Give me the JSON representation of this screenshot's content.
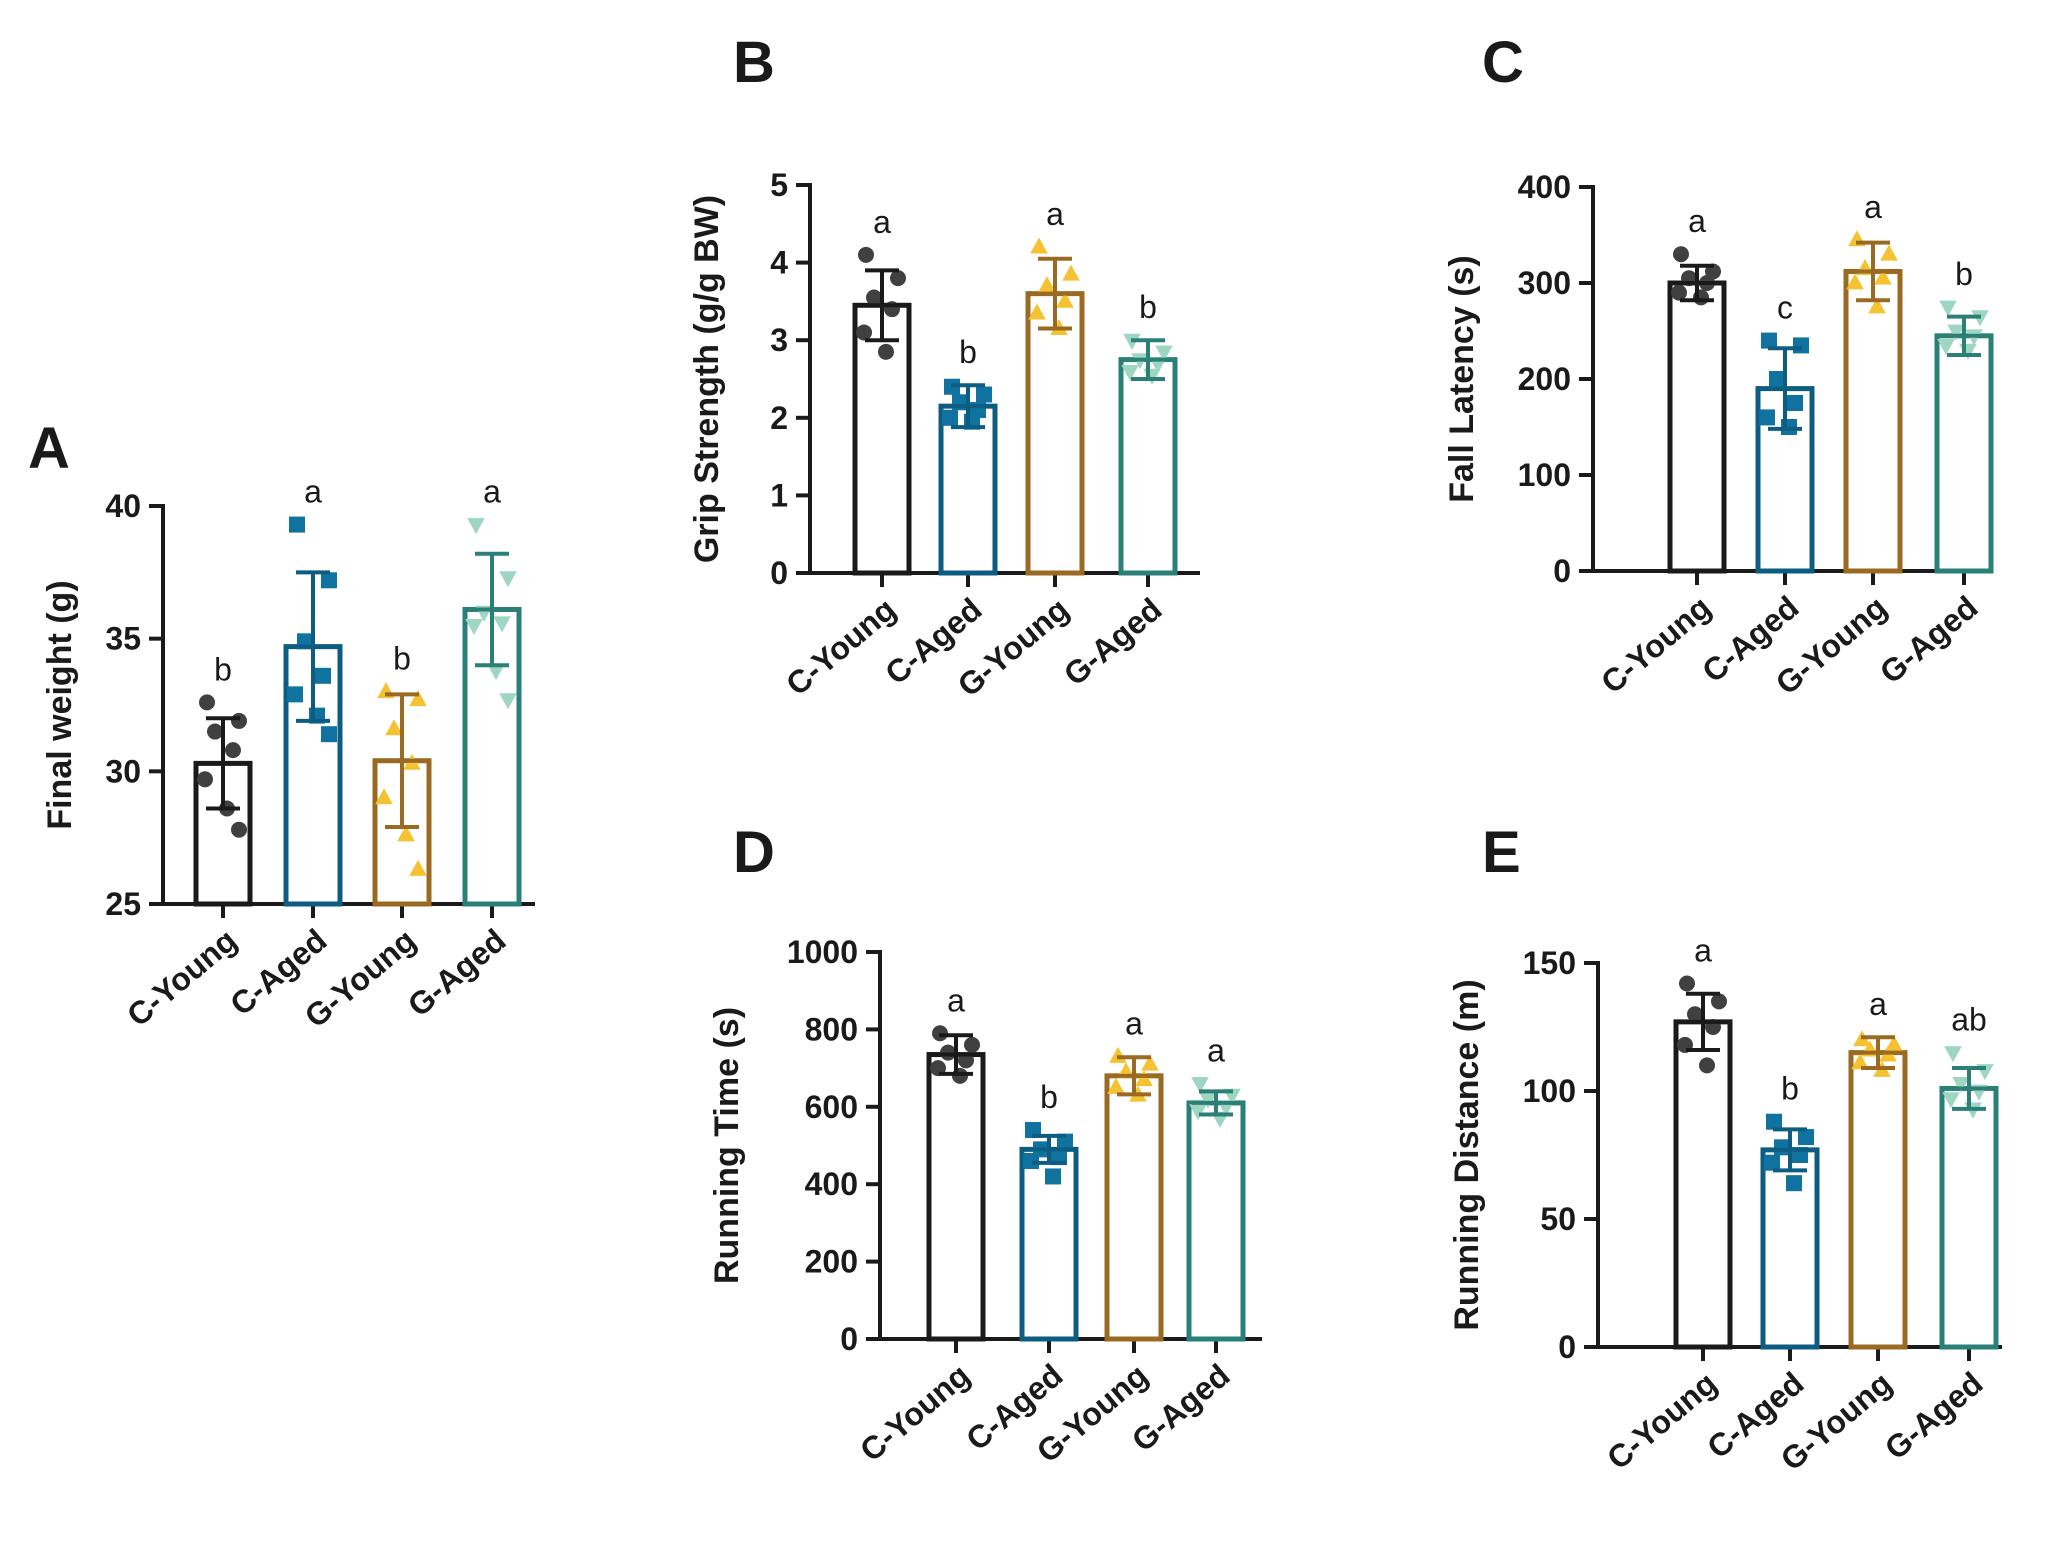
{
  "chart_data": [
    {
      "type": "bar",
      "panel": "A",
      "title": "",
      "ylabel": "Final weight (g)",
      "xlabel": "",
      "ylim": [
        25,
        40
      ],
      "yticks": [
        25,
        30,
        35,
        40
      ],
      "categories": [
        "C-Young",
        "C-Aged",
        "G-Young",
        "G-Aged"
      ],
      "colors": [
        "#1a1a1a",
        "#0d5d82",
        "#9a6a22",
        "#2a8076"
      ],
      "point_colors": [
        "#404040",
        "#10729e",
        "#f5c232",
        "#9ed6c2"
      ],
      "markers": [
        "circle",
        "square",
        "triangle-up",
        "triangle-down"
      ],
      "values": [
        30.3,
        34.7,
        30.4,
        36.1
      ],
      "errors": [
        1.7,
        2.8,
        2.5,
        2.1
      ],
      "sig_letters": [
        "b",
        "a",
        "b",
        "a"
      ],
      "points": [
        [
          32.6,
          31.9,
          31.5,
          30.8,
          29.7,
          28.6,
          27.8
        ],
        [
          39.3,
          37.2,
          34.9,
          33.6,
          32.9,
          32.1,
          31.4
        ],
        [
          33.0,
          32.7,
          31.6,
          30.3,
          29.0,
          27.6,
          26.3
        ],
        [
          39.3,
          37.3,
          36.0,
          35.6,
          35.5,
          33.8,
          32.7
        ]
      ]
    },
    {
      "type": "bar",
      "panel": "B",
      "title": "",
      "ylabel": "Grip Strength (g/g BW)",
      "xlabel": "",
      "ylim": [
        0,
        5
      ],
      "yticks": [
        0,
        1,
        2,
        3,
        4,
        5
      ],
      "categories": [
        "C-Young",
        "C-Aged",
        "G-Young",
        "G-Aged"
      ],
      "colors": [
        "#1a1a1a",
        "#0d5d82",
        "#9a6a22",
        "#2a8076"
      ],
      "point_colors": [
        "#404040",
        "#10729e",
        "#f5c232",
        "#9ed6c2"
      ],
      "markers": [
        "circle",
        "square",
        "triangle-up",
        "triangle-down"
      ],
      "values": [
        3.45,
        2.15,
        3.6,
        2.75
      ],
      "errors": [
        0.45,
        0.27,
        0.45,
        0.25
      ],
      "sig_letters": [
        "a",
        "b",
        "a",
        "b"
      ],
      "points": [
        [
          4.1,
          3.8,
          3.55,
          3.4,
          3.1,
          2.85
        ],
        [
          2.4,
          2.3,
          2.2,
          2.1,
          2.0,
          1.95
        ],
        [
          4.2,
          3.85,
          3.7,
          3.5,
          3.35,
          3.15
        ],
        [
          3.0,
          2.85,
          2.75,
          2.7,
          2.6,
          2.55
        ]
      ]
    },
    {
      "type": "bar",
      "panel": "C",
      "title": "",
      "ylabel": "Fall Latency (s)",
      "xlabel": "",
      "ylim": [
        0,
        400
      ],
      "yticks": [
        0,
        100,
        200,
        300,
        400
      ],
      "categories": [
        "C-Young",
        "C-Aged",
        "G-Young",
        "G-Aged"
      ],
      "colors": [
        "#1a1a1a",
        "#0d5d82",
        "#9a6a22",
        "#2a8076"
      ],
      "point_colors": [
        "#404040",
        "#10729e",
        "#f5c232",
        "#9ed6c2"
      ],
      "markers": [
        "circle",
        "square",
        "triangle-up",
        "triangle-down"
      ],
      "values": [
        300,
        190,
        312,
        245
      ],
      "errors": [
        18,
        42,
        30,
        20
      ],
      "sig_letters": [
        "a",
        "c",
        "a",
        "b"
      ],
      "points": [
        [
          330,
          312,
          305,
          300,
          290,
          285
        ],
        [
          240,
          235,
          200,
          175,
          160,
          150
        ],
        [
          345,
          330,
          315,
          305,
          300,
          275
        ],
        [
          275,
          265,
          250,
          245,
          235,
          230
        ]
      ]
    },
    {
      "type": "bar",
      "panel": "D",
      "title": "",
      "ylabel": "Running Time (s)",
      "xlabel": "",
      "ylim": [
        0,
        1000
      ],
      "yticks": [
        0,
        200,
        400,
        600,
        800,
        1000
      ],
      "categories": [
        "C-Young",
        "C-Aged",
        "G-Young",
        "G-Aged"
      ],
      "colors": [
        "#1a1a1a",
        "#0d5d82",
        "#9a6a22",
        "#2a8076"
      ],
      "point_colors": [
        "#404040",
        "#10729e",
        "#f5c232",
        "#9ed6c2"
      ],
      "markers": [
        "circle",
        "square",
        "triangle-up",
        "triangle-down"
      ],
      "values": [
        735,
        490,
        680,
        610
      ],
      "errors": [
        50,
        35,
        48,
        30
      ],
      "sig_letters": [
        "a",
        "b",
        "a",
        "a"
      ],
      "points": [
        [
          790,
          760,
          740,
          720,
          700,
          680
        ],
        [
          540,
          510,
          490,
          470,
          460,
          420
        ],
        [
          730,
          710,
          690,
          670,
          650,
          630
        ],
        [
          660,
          630,
          620,
          600,
          590,
          570
        ]
      ]
    },
    {
      "type": "bar",
      "panel": "E",
      "title": "",
      "ylabel": "Running Distance (m)",
      "xlabel": "",
      "ylim": [
        0,
        150
      ],
      "yticks": [
        0,
        50,
        100,
        150
      ],
      "categories": [
        "C-Young",
        "C-Aged",
        "G-Young",
        "G-Aged"
      ],
      "colors": [
        "#1a1a1a",
        "#0d5d82",
        "#9a6a22",
        "#2a8076"
      ],
      "point_colors": [
        "#404040",
        "#10729e",
        "#f5c232",
        "#9ed6c2"
      ],
      "markers": [
        "circle",
        "square",
        "triangle-up",
        "triangle-down"
      ],
      "values": [
        127,
        77,
        115,
        101
      ],
      "errors": [
        11,
        8,
        6,
        8
      ],
      "sig_letters": [
        "a",
        "b",
        "a",
        "ab"
      ],
      "points": [
        [
          142,
          135,
          130,
          125,
          118,
          110
        ],
        [
          88,
          82,
          78,
          75,
          72,
          64
        ],
        [
          120,
          118,
          116,
          114,
          111,
          108
        ],
        [
          115,
          108,
          103,
          100,
          97,
          93
        ]
      ]
    }
  ]
}
